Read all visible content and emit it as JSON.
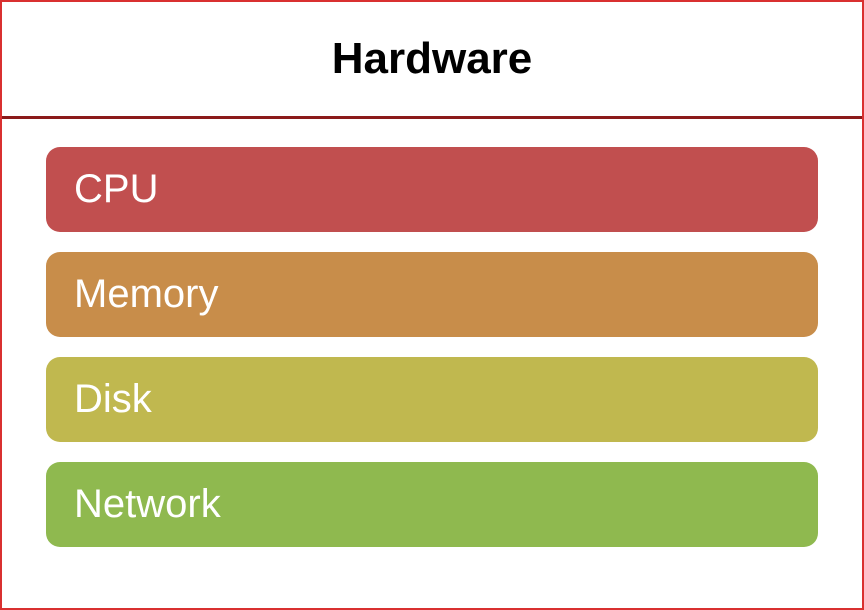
{
  "diagram": {
    "type": "infographic",
    "title": "Hardware",
    "title_fontsize": 44,
    "title_fontweight": 700,
    "title_color": "#000000",
    "container_border_color": "#d93030",
    "header_divider_color": "#8b1a1a",
    "background_color": "#ffffff",
    "bar_radius": 14,
    "bar_fontsize": 40,
    "bar_text_color": "#ffffff",
    "items": [
      {
        "label": "CPU",
        "color": "#c14f4f"
      },
      {
        "label": "Memory",
        "color": "#c88d4a"
      },
      {
        "label": "Disk",
        "color": "#c0b84f"
      },
      {
        "label": "Network",
        "color": "#8fb94f"
      }
    ]
  }
}
